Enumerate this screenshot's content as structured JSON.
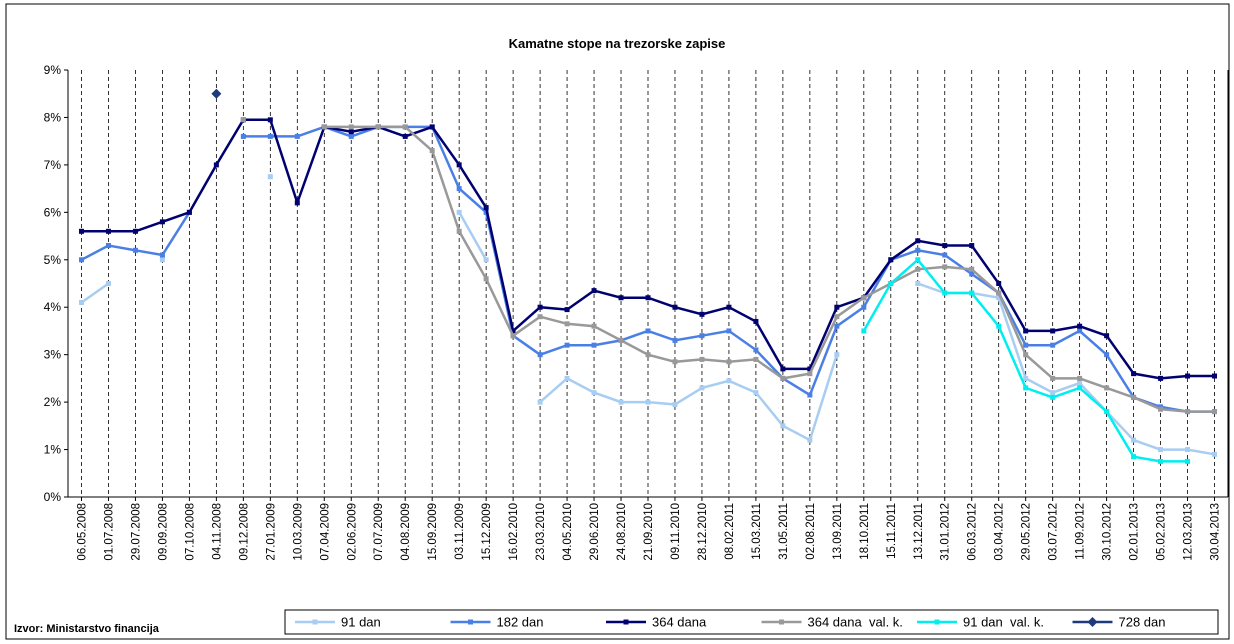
{
  "chart_data": {
    "type": "line",
    "title": "Kamatne stope na trezorske zapise",
    "source": "Izvor: Ministarstvo financija",
    "categories": [
      "06.05.2008",
      "01.07.2008",
      "29.07.2008",
      "09.09.2008",
      "07.10.2008",
      "04.11.2008",
      "09.12.2008",
      "27.01.2009",
      "10.03.2009",
      "07.04.2009",
      "02.06.2009",
      "07.07.2009",
      "04.08.2009",
      "15.09.2009",
      "03.11.2009",
      "15.12.2009",
      "16.02.2010",
      "23.03.2010",
      "04.05.2010",
      "29.06.2010",
      "24.08.2010",
      "21.09.2010",
      "09.11.2010",
      "28.12.2010",
      "08.02.2011",
      "15.03.2011",
      "31.05.2011",
      "02.08.2011",
      "13.09.2011",
      "18.10.2011",
      "15.11.2011",
      "13.12.2011",
      "31.01.2012",
      "06.03.2012",
      "03.04.2012",
      "29.05.2012",
      "03.07.2012",
      "11.09.2012",
      "30.10.2012",
      "02.01.2013",
      "05.02.2013",
      "12.03.2013",
      "30.04.2013"
    ],
    "series": [
      {
        "name": "91 dan",
        "color": "#a8cdf2",
        "marker": "square",
        "values": [
          4.1,
          4.5,
          null,
          5.0,
          null,
          null,
          null,
          6.75,
          null,
          null,
          null,
          null,
          null,
          null,
          6.0,
          5.0,
          null,
          2.0,
          2.5,
          2.2,
          2.0,
          2.0,
          1.95,
          2.3,
          2.45,
          2.2,
          1.5,
          1.2,
          3.0,
          null,
          null,
          4.5,
          4.3,
          4.3,
          4.2,
          2.5,
          2.2,
          2.4,
          1.8,
          1.2,
          1.0,
          1.0,
          0.9
        ]
      },
      {
        "name": "182 dan",
        "color": "#4a7fe6",
        "marker": "square",
        "values": [
          5.0,
          5.3,
          5.2,
          5.1,
          6.0,
          null,
          7.6,
          7.6,
          7.6,
          7.8,
          7.6,
          7.8,
          7.8,
          7.8,
          6.5,
          6.0,
          3.4,
          3.0,
          3.2,
          3.2,
          3.3,
          3.5,
          3.3,
          3.4,
          3.5,
          3.1,
          2.5,
          2.15,
          3.6,
          4.0,
          5.0,
          5.2,
          5.1,
          4.7,
          4.3,
          3.2,
          3.2,
          3.5,
          3.0,
          2.1,
          1.9,
          1.8,
          1.8
        ]
      },
      {
        "name": "364 dana",
        "color": "#000070",
        "marker": "square",
        "values": [
          5.6,
          5.6,
          5.6,
          5.8,
          6.0,
          7.0,
          7.95,
          7.95,
          6.2,
          7.8,
          7.7,
          7.8,
          7.6,
          7.8,
          7.0,
          6.1,
          3.5,
          4.0,
          3.95,
          4.35,
          4.2,
          4.2,
          4.0,
          3.85,
          4.0,
          3.7,
          2.7,
          2.7,
          4.0,
          4.2,
          5.0,
          5.4,
          5.3,
          5.3,
          4.5,
          3.5,
          3.5,
          3.6,
          3.4,
          2.6,
          2.5,
          2.55,
          2.55
        ]
      },
      {
        "name": "364 dana  val. k.",
        "color": "#999999",
        "marker": "square",
        "values": [
          null,
          null,
          null,
          null,
          null,
          null,
          7.95,
          null,
          null,
          7.8,
          7.8,
          7.8,
          7.8,
          7.3,
          5.6,
          4.6,
          3.4,
          3.8,
          3.65,
          3.6,
          3.3,
          3.0,
          2.85,
          2.9,
          2.85,
          2.9,
          2.5,
          2.6,
          3.8,
          4.2,
          4.5,
          4.8,
          4.85,
          4.8,
          4.3,
          3.0,
          2.5,
          2.5,
          2.3,
          2.1,
          1.85,
          1.8,
          1.8
        ]
      },
      {
        "name": "91 dan  val. k.",
        "color": "#00eeee",
        "marker": "square",
        "values": [
          null,
          null,
          null,
          null,
          null,
          null,
          null,
          null,
          null,
          null,
          null,
          null,
          null,
          null,
          null,
          null,
          null,
          null,
          null,
          null,
          null,
          null,
          null,
          null,
          null,
          null,
          null,
          null,
          null,
          3.5,
          4.5,
          5.0,
          4.3,
          4.3,
          3.6,
          2.3,
          2.1,
          2.3,
          1.8,
          0.85,
          0.75,
          0.75,
          null
        ]
      },
      {
        "name": "728 dan",
        "color": "#1f3a7a",
        "marker": "diamond",
        "values": [
          null,
          null,
          null,
          null,
          null,
          8.5,
          null,
          null,
          null,
          null,
          null,
          null,
          null,
          null,
          null,
          null,
          null,
          null,
          null,
          null,
          null,
          null,
          null,
          null,
          null,
          null,
          null,
          null,
          null,
          null,
          null,
          null,
          null,
          null,
          null,
          null,
          null,
          null,
          null,
          null,
          null,
          null,
          null
        ]
      }
    ],
    "ylim": [
      0,
      9
    ],
    "yticks": [
      {
        "value": 0,
        "label": "0%"
      },
      {
        "value": 1,
        "label": "1%"
      },
      {
        "value": 2,
        "label": "2%"
      },
      {
        "value": 3,
        "label": "3%"
      },
      {
        "value": 4,
        "label": "4%"
      },
      {
        "value": 5,
        "label": "5%"
      },
      {
        "value": 6,
        "label": "6%"
      },
      {
        "value": 7,
        "label": "7%"
      },
      {
        "value": 8,
        "label": "8%"
      },
      {
        "value": 9,
        "label": "9%"
      }
    ],
    "grid": "vertical-dashed",
    "legend": "bottom"
  }
}
